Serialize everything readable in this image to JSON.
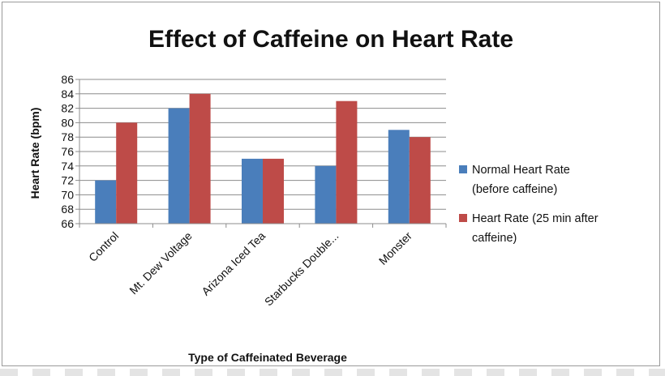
{
  "chart_data": {
    "type": "bar",
    "title": "Effect of Caffeine on Heart Rate",
    "xlabel": "Type of Caffeinated Beverage",
    "ylabel": "Heart Rate (bpm)",
    "ylim": [
      66,
      86
    ],
    "ytick_step": 2,
    "yticks": [
      "66",
      "68",
      "70",
      "72",
      "74",
      "76",
      "78",
      "80",
      "82",
      "84",
      "86"
    ],
    "grid": true,
    "legend_position": "right",
    "categories": [
      "Control",
      "Mt. Dew Voltage",
      "Arizona Iced Tea",
      "Starbucks Double...",
      "Monster"
    ],
    "series": [
      {
        "name_lines": [
          "Normal Heart Rate",
          "(before caffeine)"
        ],
        "color": "#4a7ebb",
        "values": [
          72,
          82,
          75,
          74,
          79
        ]
      },
      {
        "name_lines": [
          "Heart Rate (25 min after",
          "caffeine)"
        ],
        "color": "#be4b48",
        "values": [
          80,
          84,
          75,
          83,
          78
        ]
      }
    ]
  }
}
